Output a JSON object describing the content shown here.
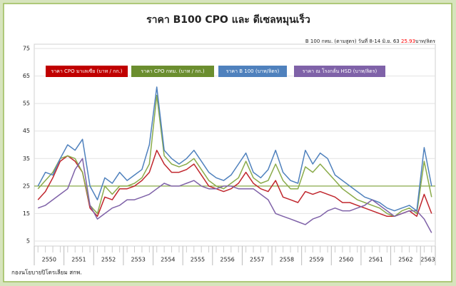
{
  "chart_data": {
    "type": "line",
    "title": "ราคา B100  CPO และ ดีเซลหมุนเร็ว",
    "subtitle": {
      "before": "B 100 กทม. (ตามสูตร) วันที่ 8-14 มิ.ย. 63",
      "highlight": "25.93",
      "after": "บาท/ลิตร",
      "highlight_color": "#ff0000"
    },
    "footer": "กองนโยบายปิโตรเลียม สกพ.",
    "categories": [
      "2550",
      null,
      null,
      null,
      "2551",
      null,
      null,
      null,
      "2552",
      null,
      null,
      null,
      "2553",
      null,
      null,
      null,
      "2554",
      null,
      null,
      null,
      "2555",
      null,
      null,
      null,
      "2556",
      null,
      null,
      null,
      "2557",
      null,
      null,
      null,
      "2558",
      null,
      null,
      null,
      "2559",
      null,
      null,
      null,
      "2560",
      null,
      null,
      null,
      "2561",
      null,
      null,
      null,
      "2562",
      null,
      null,
      null,
      "2563",
      null
    ],
    "series": [
      {
        "name": "ราคา CPO มาเลเซีย (บาท / กก.)",
        "color": "#c0262d",
        "values": [
          20,
          23,
          28,
          34,
          36,
          34,
          30,
          17,
          14,
          21,
          20,
          24,
          24,
          25,
          27,
          30,
          38,
          33,
          30,
          30,
          31,
          33,
          29,
          25,
          24,
          23,
          24,
          26,
          30,
          26,
          24,
          23,
          27,
          21,
          20,
          19,
          23,
          22,
          23,
          22,
          21,
          19,
          19,
          18,
          17,
          16,
          15,
          14,
          14,
          15,
          16,
          14,
          22,
          15
        ]
      },
      {
        "name": "ราคา CPO กทม. (บาท / กก.)",
        "color": "#8aab4a",
        "values": [
          24,
          27,
          30,
          35,
          36,
          35,
          30,
          18,
          15,
          25,
          22,
          25,
          25,
          26,
          28,
          33,
          58,
          36,
          33,
          32,
          33,
          35,
          31,
          27,
          25,
          24,
          26,
          28,
          34,
          28,
          26,
          27,
          33,
          27,
          24,
          24,
          32,
          30,
          33,
          30,
          27,
          24,
          22,
          20,
          19,
          18,
          17,
          15,
          14,
          16,
          17,
          15,
          34,
          21
        ]
      },
      {
        "name": "ราคา B 100 (บาท/ลิตร)",
        "color": "#4f81bd",
        "values": [
          25,
          30,
          29,
          35,
          40,
          38,
          42,
          25,
          20,
          28,
          26,
          30,
          27,
          29,
          31,
          40,
          61,
          38,
          35,
          33,
          35,
          38,
          34,
          30,
          28,
          27,
          29,
          33,
          37,
          30,
          28,
          31,
          38,
          30,
          27,
          26,
          38,
          33,
          37,
          35,
          29,
          27,
          25,
          23,
          21,
          20,
          19,
          17,
          16,
          17,
          18,
          16,
          39,
          25
        ]
      },
      {
        "name": "ราคา ณ โรงกลั่น HSD (บาท/ลิตร)",
        "color": "#7f62a8",
        "values": [
          17,
          18,
          20,
          22,
          24,
          31,
          35,
          18,
          13,
          15,
          17,
          18,
          20,
          20,
          21,
          22,
          24,
          26,
          25,
          25,
          26,
          27,
          25,
          24,
          24,
          25,
          25,
          24,
          24,
          24,
          22,
          20,
          15,
          14,
          13,
          12,
          11,
          13,
          14,
          16,
          17,
          16,
          16,
          17,
          18,
          20,
          18,
          16,
          14,
          15,
          16,
          16,
          13,
          8
        ]
      }
    ],
    "reference_line": {
      "value": 25,
      "color": "#8aab4a"
    },
    "legend_colors": [
      "#c00000",
      "#6b8e2f",
      "#4f81bd",
      "#7f62a8"
    ],
    "ylim": [
      5,
      75
    ],
    "yticks": [
      5,
      15,
      25,
      35,
      45,
      55,
      65,
      75
    ],
    "grid": true
  }
}
